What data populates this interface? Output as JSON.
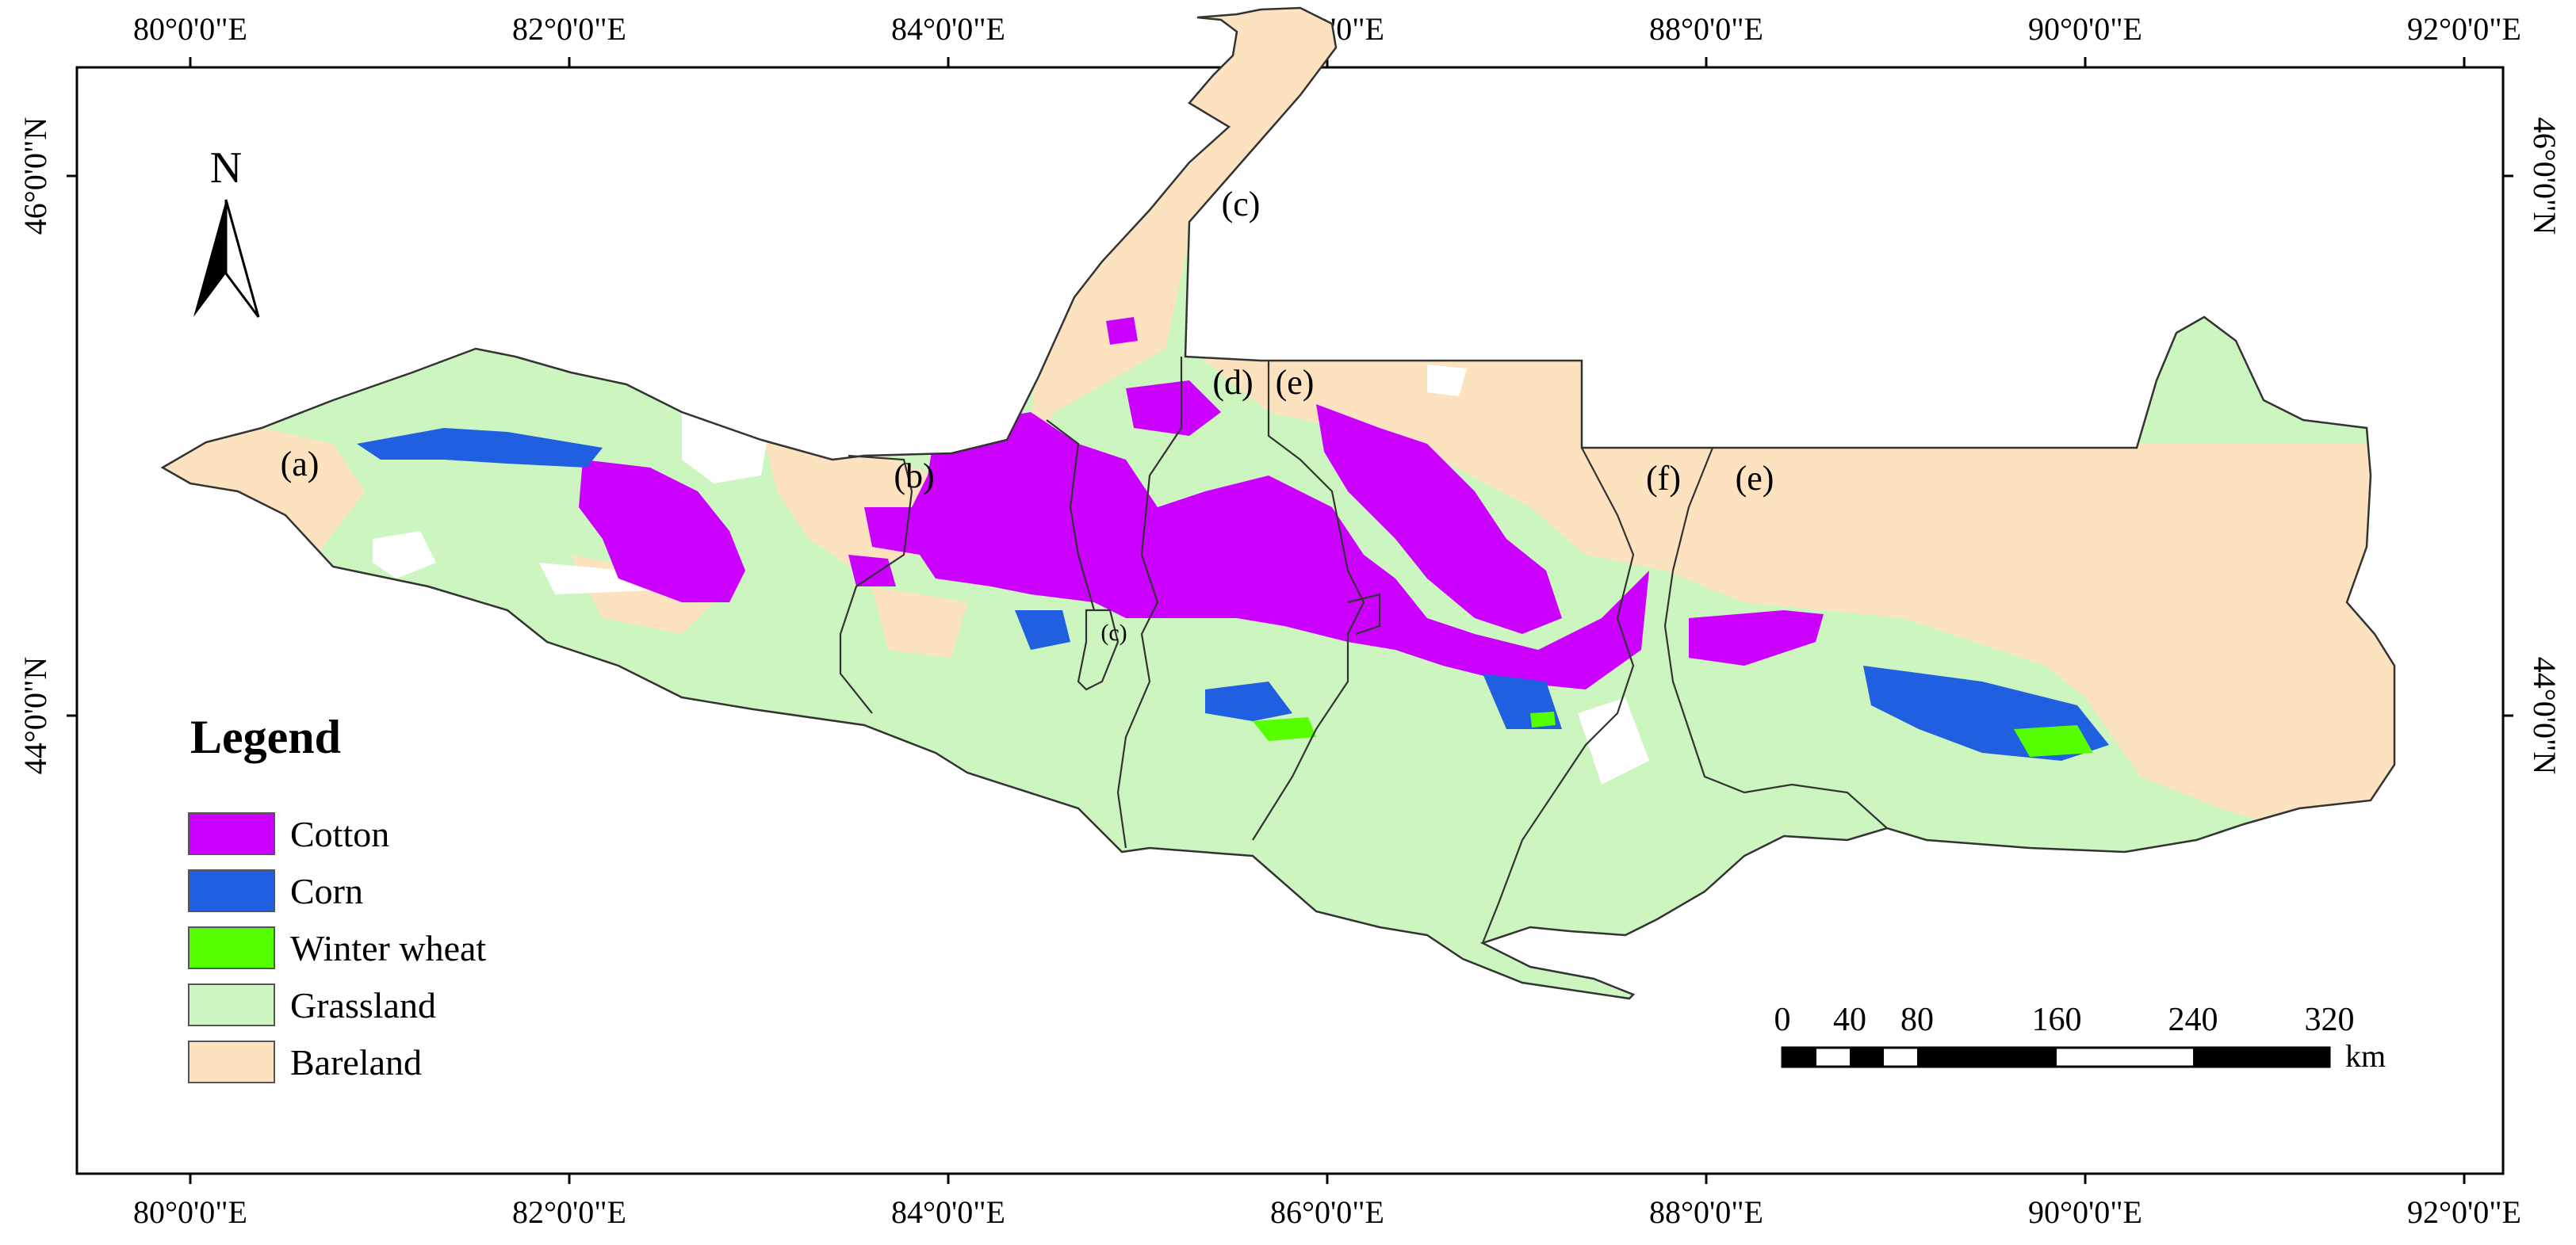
{
  "map": {
    "axes": {
      "top_ticks": [
        "80°0'0\"E",
        "82°0'0\"E",
        "84°0'0\"E",
        "86°0'0\"E",
        "88°0'0\"E",
        "90°0'0\"E",
        "92°0'0\"E"
      ],
      "bottom_ticks": [
        "80°0'0\"E",
        "82°0'0\"E",
        "84°0'0\"E",
        "86°0'0\"E",
        "88°0'0\"E",
        "90°0'0\"E",
        "92°0'0\"E"
      ],
      "left_ticks": [
        "46°0'0\"N",
        "44°0'0\"N"
      ],
      "right_ticks": [
        "46°0'0\"N",
        "44°0'0\"N"
      ]
    },
    "north_arrow": {
      "label": "N"
    },
    "legend": {
      "title": "Legend",
      "items": [
        {
          "label": "Cotton",
          "color": "#cc00ff"
        },
        {
          "label": "Corn",
          "color": "#1f5fe0"
        },
        {
          "label": "Winter wheat",
          "color": "#55ff00"
        },
        {
          "label": "Grassland",
          "color": "#ccf5c0"
        },
        {
          "label": "Bareland",
          "color": "#fde2c0"
        }
      ]
    },
    "scale_bar": {
      "labels": [
        "0",
        "40",
        "80",
        "160",
        "240",
        "320"
      ],
      "unit": "km"
    },
    "region_labels": [
      "(a)",
      "(b)",
      "(c)",
      "(c)",
      "(d)",
      "(e)",
      "(f)",
      "(e)"
    ],
    "colors": {
      "grassland": "#ccf5c0",
      "bareland": "#fde2c0",
      "cotton": "#cc00ff",
      "corn": "#1f5fe0",
      "winter_wheat": "#55ff00",
      "boundary": "#333333"
    }
  }
}
